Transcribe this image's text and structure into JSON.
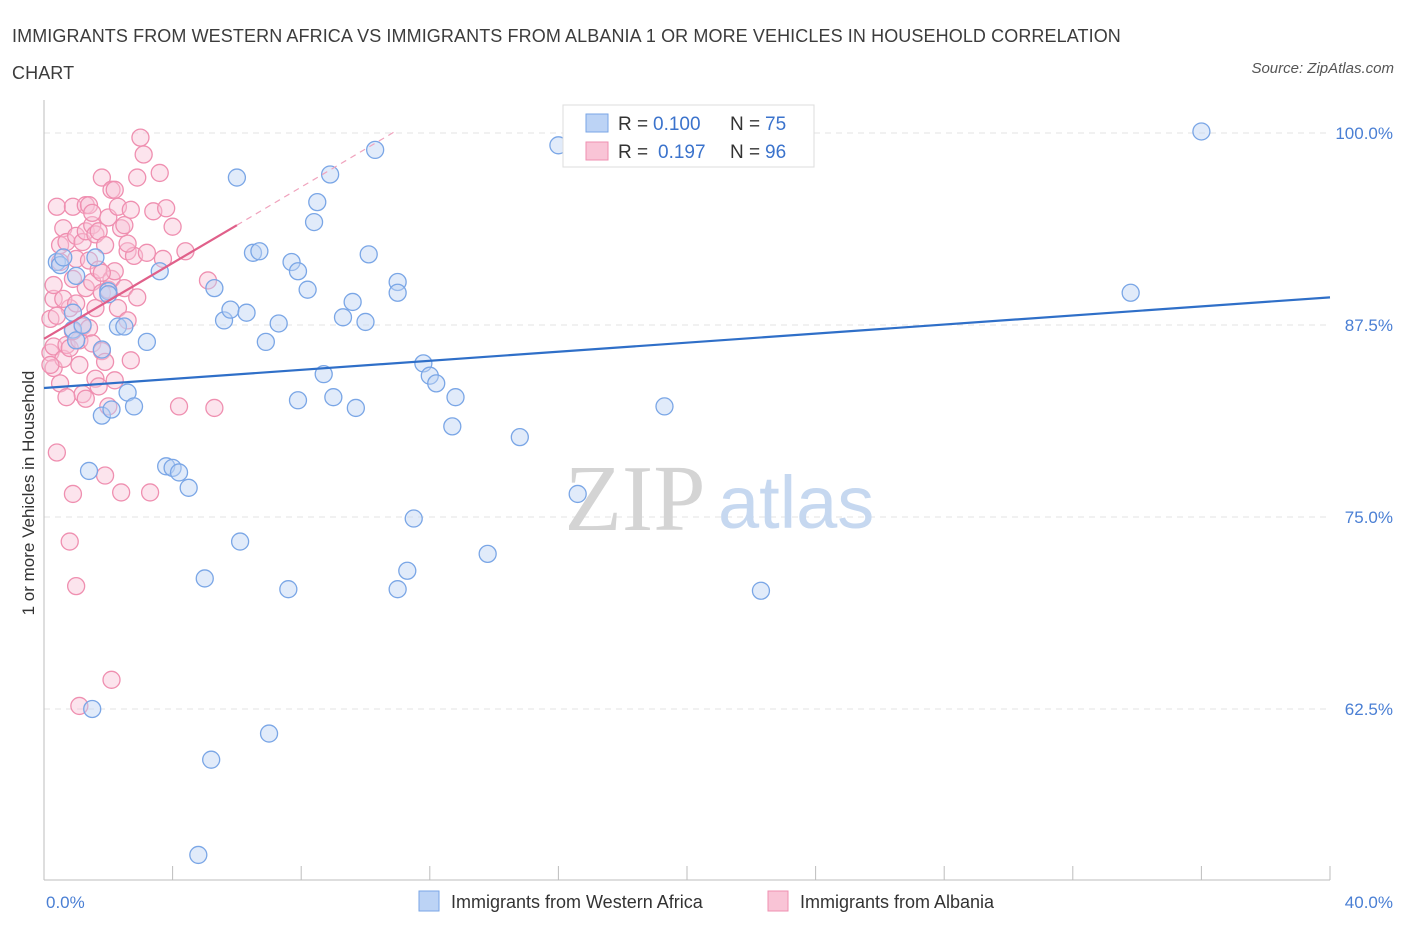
{
  "chart_data": {
    "type": "scatter",
    "title": "IMMIGRANTS FROM WESTERN AFRICA VS IMMIGRANTS FROM ALBANIA 1 OR MORE VEHICLES IN HOUSEHOLD CORRELATION CHART",
    "source": "Source: ZipAtlas.com",
    "ylabel": "1 or more Vehicles in Household",
    "xlim": [
      0,
      40
    ],
    "ylim": [
      52.5,
      102.5
    ],
    "x_tick_labels": [
      "0.0%",
      "40.0%"
    ],
    "y_ticks": [
      {
        "value": 100.0,
        "label": "100.0%"
      },
      {
        "value": 87.5,
        "label": "87.5%"
      },
      {
        "value": 75.0,
        "label": "75.0%"
      },
      {
        "value": 62.5,
        "label": "62.5%"
      }
    ],
    "watermark": {
      "zip": "ZIP",
      "atlas": "atlas"
    },
    "legend": {
      "rows": [
        {
          "r_label": "R =",
          "r_value": "0.100",
          "n_label": "N =",
          "n_value": "75"
        },
        {
          "r_label": "R =",
          "r_value": "0.197",
          "n_label": "N =",
          "n_value": "96"
        }
      ]
    },
    "series": [
      {
        "name": "Immigrants from Western Africa",
        "color": "#7aa6e6",
        "fill": "#bcd3f5",
        "line_color": "#2f6fc8",
        "trend": {
          "x": [
            0,
            40
          ],
          "y": [
            83.4,
            89.3
          ]
        },
        "points": [
          [
            0.4,
            91.6
          ],
          [
            0.5,
            91.4
          ],
          [
            0.9,
            87.2
          ],
          [
            1.0,
            86.5
          ],
          [
            0.9,
            88.3
          ],
          [
            1.8,
            85.9
          ],
          [
            1.8,
            81.6
          ],
          [
            2.0,
            89.7
          ],
          [
            2.1,
            82.0
          ],
          [
            2.3,
            87.4
          ],
          [
            1.4,
            78.0
          ],
          [
            1.5,
            62.5
          ],
          [
            2.5,
            87.4
          ],
          [
            2.6,
            83.1
          ],
          [
            2.8,
            82.2
          ],
          [
            3.2,
            86.4
          ],
          [
            3.6,
            91.0
          ],
          [
            3.8,
            78.3
          ],
          [
            4.0,
            78.2
          ],
          [
            4.2,
            77.9
          ],
          [
            4.5,
            76.9
          ],
          [
            4.8,
            53.0
          ],
          [
            5.0,
            71.0
          ],
          [
            5.2,
            59.2
          ],
          [
            5.3,
            89.9
          ],
          [
            5.6,
            87.8
          ],
          [
            5.8,
            88.5
          ],
          [
            6.0,
            97.1
          ],
          [
            6.1,
            73.4
          ],
          [
            6.3,
            88.3
          ],
          [
            6.5,
            92.2
          ],
          [
            6.7,
            92.3
          ],
          [
            6.9,
            86.4
          ],
          [
            7.0,
            60.9
          ],
          [
            7.3,
            87.6
          ],
          [
            7.6,
            70.3
          ],
          [
            7.7,
            91.6
          ],
          [
            7.9,
            91.0
          ],
          [
            7.9,
            82.6
          ],
          [
            8.2,
            89.8
          ],
          [
            8.4,
            94.2
          ],
          [
            8.5,
            95.5
          ],
          [
            8.7,
            84.3
          ],
          [
            8.9,
            97.3
          ],
          [
            9.0,
            82.8
          ],
          [
            9.3,
            88.0
          ],
          [
            9.6,
            89.0
          ],
          [
            9.7,
            82.1
          ],
          [
            10.0,
            87.7
          ],
          [
            10.1,
            92.1
          ],
          [
            10.3,
            98.9
          ],
          [
            11.0,
            90.3
          ],
          [
            11.0,
            89.6
          ],
          [
            11.0,
            70.3
          ],
          [
            11.3,
            71.5
          ],
          [
            11.5,
            74.9
          ],
          [
            11.8,
            85.0
          ],
          [
            12.0,
            84.2
          ],
          [
            12.2,
            83.7
          ],
          [
            12.7,
            80.9
          ],
          [
            12.8,
            82.8
          ],
          [
            13.8,
            72.6
          ],
          [
            14.8,
            80.2
          ],
          [
            16.0,
            99.2
          ],
          [
            16.6,
            76.5
          ],
          [
            18.8,
            100.3
          ],
          [
            19.3,
            82.2
          ],
          [
            22.3,
            70.2
          ],
          [
            33.8,
            89.6
          ],
          [
            36.0,
            100.1
          ],
          [
            0.6,
            91.9
          ],
          [
            1.0,
            90.7
          ],
          [
            1.6,
            91.9
          ],
          [
            2.0,
            89.5
          ],
          [
            1.2,
            87.5
          ]
        ]
      },
      {
        "name": "Immigrants from Albania",
        "color": "#ef8fb0",
        "fill": "#f9c4d6",
        "line_color": "#e0608a",
        "trend": {
          "x": [
            0,
            6.0
          ],
          "y": [
            86.6,
            94.0
          ]
        },
        "trend_dashed": {
          "x": [
            6.0,
            11.0
          ],
          "y": [
            94.0,
            100.2
          ]
        },
        "points": [
          [
            0.2,
            87.9
          ],
          [
            0.2,
            85.7
          ],
          [
            0.3,
            86.1
          ],
          [
            0.3,
            89.2
          ],
          [
            0.3,
            84.7
          ],
          [
            0.4,
            95.2
          ],
          [
            0.4,
            79.2
          ],
          [
            0.5,
            91.6
          ],
          [
            0.5,
            92.7
          ],
          [
            0.5,
            83.7
          ],
          [
            0.6,
            93.8
          ],
          [
            0.6,
            85.3
          ],
          [
            0.7,
            86.2
          ],
          [
            0.7,
            92.9
          ],
          [
            0.8,
            88.6
          ],
          [
            0.8,
            86.0
          ],
          [
            0.8,
            73.4
          ],
          [
            0.9,
            95.2
          ],
          [
            0.9,
            90.5
          ],
          [
            0.9,
            76.5
          ],
          [
            1.0,
            70.5
          ],
          [
            1.0,
            93.3
          ],
          [
            1.0,
            91.8
          ],
          [
            1.1,
            86.5
          ],
          [
            1.1,
            84.9
          ],
          [
            1.1,
            62.7
          ],
          [
            1.2,
            92.9
          ],
          [
            1.2,
            87.4
          ],
          [
            1.2,
            83.0
          ],
          [
            1.3,
            95.3
          ],
          [
            1.3,
            93.6
          ],
          [
            1.3,
            89.9
          ],
          [
            1.4,
            95.3
          ],
          [
            1.4,
            91.7
          ],
          [
            1.4,
            87.3
          ],
          [
            1.5,
            94.0
          ],
          [
            1.5,
            90.3
          ],
          [
            1.5,
            86.3
          ],
          [
            1.6,
            93.4
          ],
          [
            1.6,
            88.6
          ],
          [
            1.6,
            84.0
          ],
          [
            1.7,
            93.6
          ],
          [
            1.7,
            91.1
          ],
          [
            1.7,
            83.5
          ],
          [
            1.8,
            97.1
          ],
          [
            1.8,
            89.6
          ],
          [
            1.8,
            85.8
          ],
          [
            1.9,
            92.7
          ],
          [
            1.9,
            77.7
          ],
          [
            2.0,
            94.5
          ],
          [
            2.0,
            89.8
          ],
          [
            2.0,
            82.2
          ],
          [
            2.1,
            96.3
          ],
          [
            2.1,
            90.5
          ],
          [
            2.1,
            64.4
          ],
          [
            2.2,
            96.3
          ],
          [
            2.2,
            91.0
          ],
          [
            2.3,
            95.2
          ],
          [
            2.3,
            88.6
          ],
          [
            2.4,
            93.8
          ],
          [
            2.4,
            76.6
          ],
          [
            2.5,
            94.0
          ],
          [
            2.5,
            89.9
          ],
          [
            2.6,
            92.3
          ],
          [
            2.6,
            87.8
          ],
          [
            2.7,
            95.0
          ],
          [
            2.7,
            85.2
          ],
          [
            2.8,
            92.0
          ],
          [
            2.9,
            97.1
          ],
          [
            2.9,
            89.3
          ],
          [
            3.0,
            99.7
          ],
          [
            3.1,
            98.6
          ],
          [
            3.2,
            92.2
          ],
          [
            3.3,
            76.6
          ],
          [
            3.4,
            94.9
          ],
          [
            3.6,
            97.4
          ],
          [
            3.7,
            91.8
          ],
          [
            3.8,
            95.1
          ],
          [
            4.0,
            93.9
          ],
          [
            4.2,
            82.2
          ],
          [
            4.4,
            92.3
          ],
          [
            5.1,
            90.4
          ],
          [
            5.3,
            82.1
          ],
          [
            0.2,
            84.9
          ],
          [
            0.3,
            90.1
          ],
          [
            0.6,
            89.2
          ],
          [
            0.9,
            87.1
          ],
          [
            1.3,
            82.7
          ],
          [
            1.5,
            94.8
          ],
          [
            1.9,
            85.1
          ],
          [
            2.2,
            83.9
          ],
          [
            2.6,
            92.8
          ],
          [
            0.4,
            88.1
          ],
          [
            0.7,
            82.8
          ],
          [
            1.0,
            88.9
          ],
          [
            1.8,
            90.9
          ]
        ]
      }
    ]
  }
}
